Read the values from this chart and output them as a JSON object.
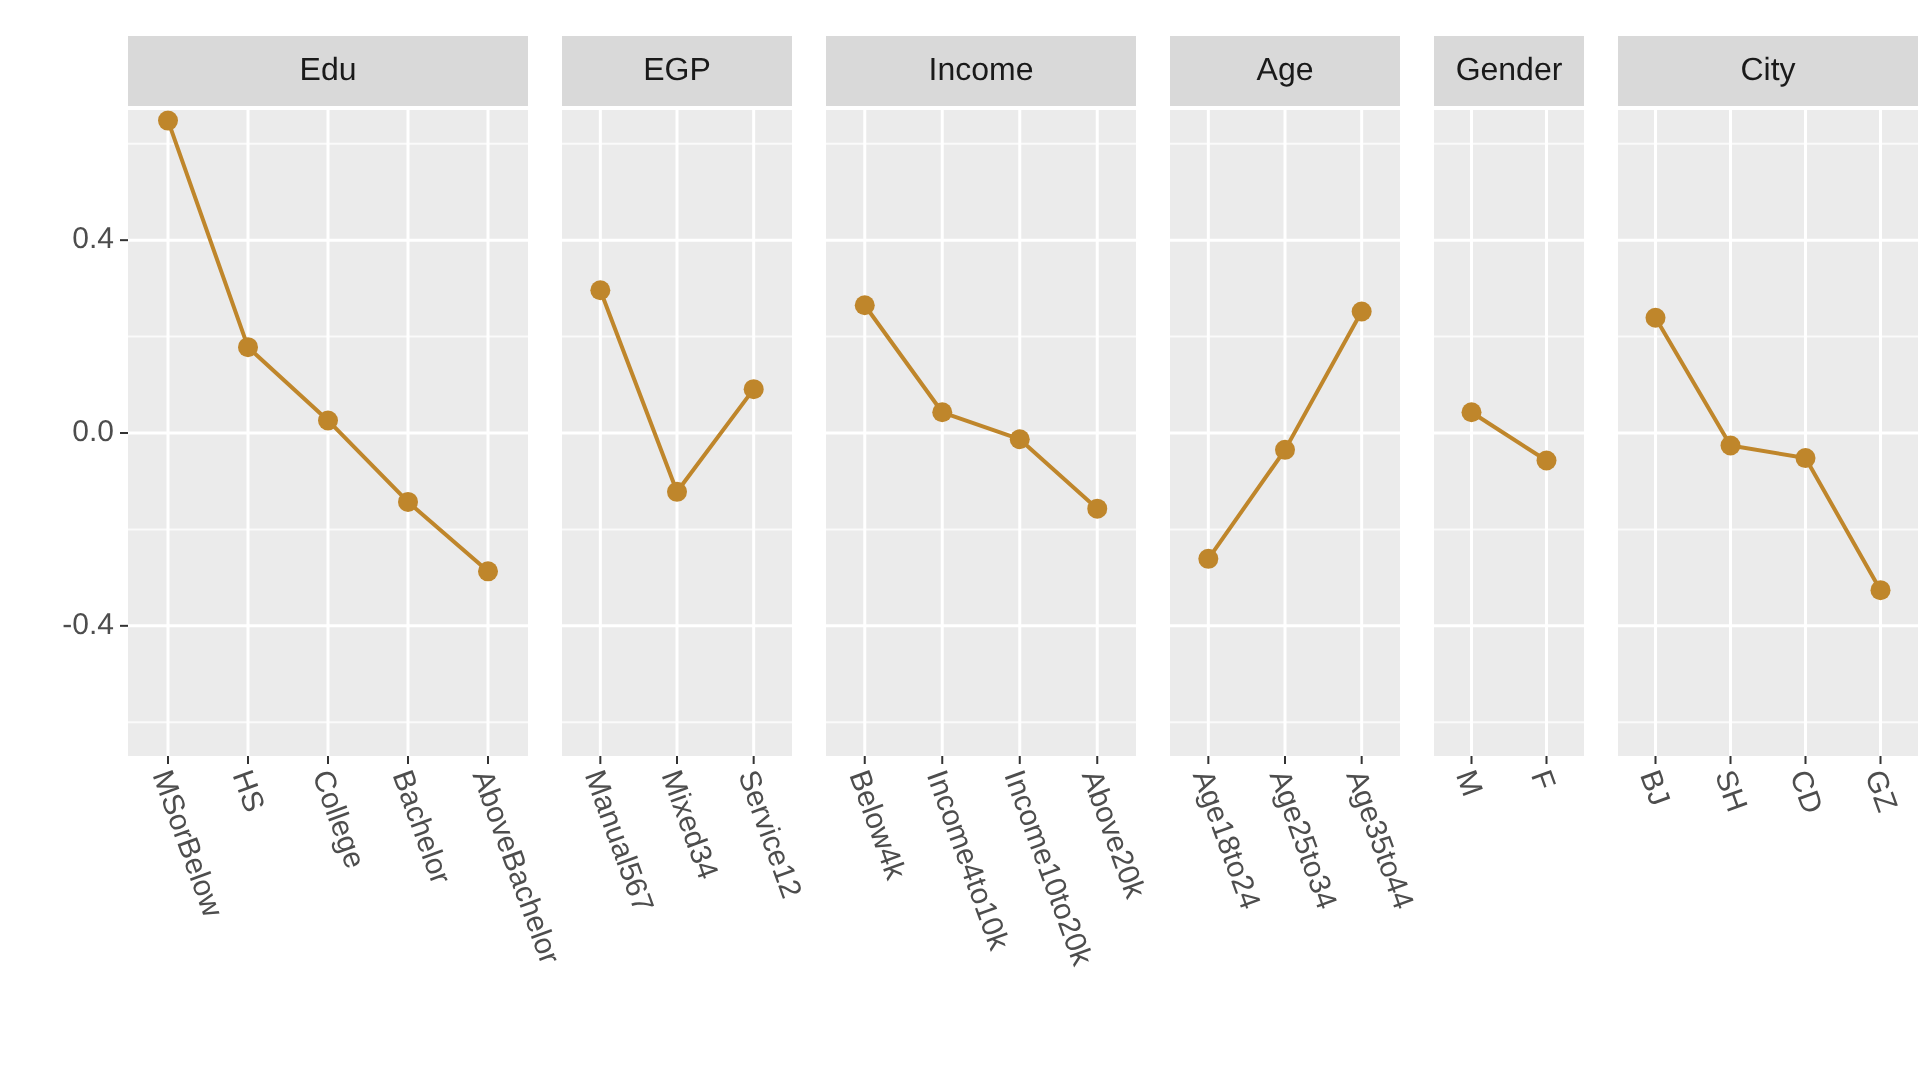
{
  "chart_data": [
    {
      "type": "line",
      "title": "Edu",
      "categories": [
        "MSorBelow",
        "HS",
        "College",
        "Bachelor",
        "AboveBachelor"
      ],
      "values": [
        0.648,
        0.178,
        0.026,
        -0.143,
        -0.287
      ],
      "color": "#bf862b",
      "ylim": [
        -0.67,
        0.67
      ],
      "yticks": [
        -0.4,
        {
          "value": 0,
          "label": "0.0"
        },
        0.4
      ],
      "grid": true,
      "marker": "circle"
    },
    {
      "type": "line",
      "title": "EGP",
      "categories": [
        "Manual567",
        "Mixed34",
        "Service12"
      ],
      "values": [
        0.296,
        -0.122,
        0.091
      ],
      "color": "#bf862b",
      "ylim": [
        -0.67,
        0.67
      ],
      "grid": true,
      "marker": "circle",
      "tick_labels": "x"
    },
    {
      "type": "line",
      "title": "Income",
      "categories": [
        "Below4k",
        "Income4to10k",
        "Income10to20k",
        "Above20k"
      ],
      "values": [
        0.265,
        0.043,
        -0.013,
        -0.157
      ],
      "color": "#bf862b",
      "ylim": [
        -0.67,
        0.67
      ],
      "grid": true,
      "marker": "circle",
      "tick_labels": "x"
    },
    {
      "type": "line",
      "title": "Age",
      "categories": [
        "Age18to24",
        "Age25to34",
        "Age35to44"
      ],
      "values": [
        -0.261,
        -0.035,
        0.252
      ],
      "color": "#bf862b",
      "ylim": [
        -0.67,
        0.67
      ],
      "grid": true,
      "marker": "circle",
      "tick_labels": "x"
    },
    {
      "type": "line",
      "title": "Gender",
      "categories": [
        "M",
        "F"
      ],
      "values": [
        0.043,
        -0.057
      ],
      "color": "#bf862b",
      "ylim": [
        -0.67,
        0.67
      ],
      "grid": true,
      "marker": "circle",
      "tick_labels": "x"
    },
    {
      "type": "line",
      "title": "City",
      "categories": [
        "BJ",
        "SH",
        "CD",
        "GZ"
      ],
      "values": [
        0.239,
        -0.026,
        -0.052,
        -0.326
      ],
      "color": "#bf862b",
      "ylim": [
        -0.67,
        0.67
      ],
      "grid": true,
      "marker": "circle",
      "tick_labels": "x"
    }
  ]
}
